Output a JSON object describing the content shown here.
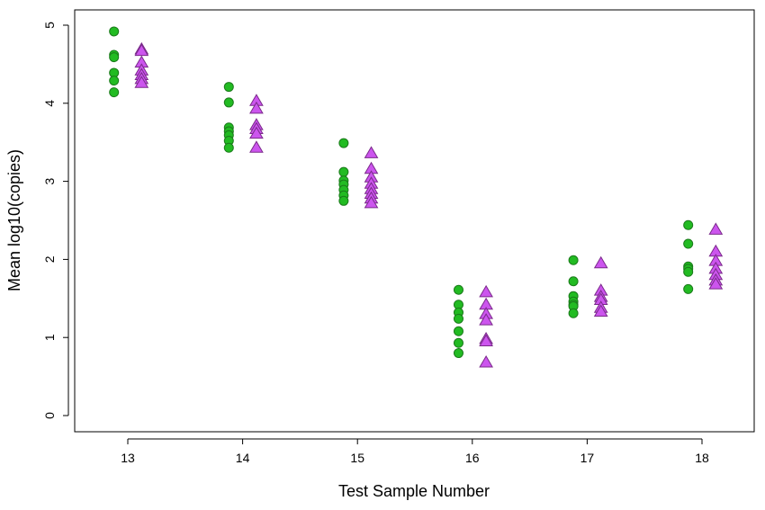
{
  "chart_data": {
    "type": "scatter",
    "title": "",
    "xlabel": "Test Sample Number",
    "ylabel": "Mean log10(copies)",
    "categories": [
      "13",
      "14",
      "15",
      "16",
      "17",
      "18"
    ],
    "yticks": [
      "0",
      "1",
      "2",
      "3",
      "4",
      "5"
    ],
    "ylim": [
      -0.2,
      5.2
    ],
    "grid": false,
    "legend": "none",
    "series": [
      {
        "marker": "circle",
        "color": "#22bb22",
        "stroke": "#1a7a1a",
        "offset": -0.12,
        "values": [
          [
            4.92,
            4.62,
            4.59,
            4.39,
            4.29,
            4.14
          ],
          [
            4.21,
            4.01,
            3.69,
            3.64,
            3.59,
            3.52,
            3.43
          ],
          [
            3.49,
            3.12,
            3.01,
            2.96,
            2.89,
            2.82,
            2.75
          ],
          [
            1.61,
            1.42,
            1.32,
            1.24,
            1.08,
            0.93,
            0.8
          ],
          [
            1.99,
            1.72,
            1.53,
            1.46,
            1.42,
            1.4,
            1.31
          ],
          [
            2.44,
            2.2,
            1.91,
            1.88,
            1.84,
            1.62
          ]
        ]
      },
      {
        "marker": "triangle",
        "color": "#cc55ee",
        "stroke": "#7a2a8a",
        "offset": 0.12,
        "values": [
          [
            4.69,
            4.67,
            4.52,
            4.42,
            4.36,
            4.31,
            4.26
          ],
          [
            4.03,
            3.93,
            3.72,
            3.67,
            3.61,
            3.43
          ],
          [
            3.36,
            3.16,
            3.05,
            2.97,
            2.9,
            2.84,
            2.78,
            2.72
          ],
          [
            1.58,
            1.42,
            1.3,
            1.22,
            0.98,
            0.95,
            0.68
          ],
          [
            1.95,
            1.6,
            1.52,
            1.48,
            1.38,
            1.33
          ],
          [
            2.38,
            2.1,
            1.98,
            1.88,
            1.8,
            1.73,
            1.68
          ]
        ]
      }
    ]
  }
}
